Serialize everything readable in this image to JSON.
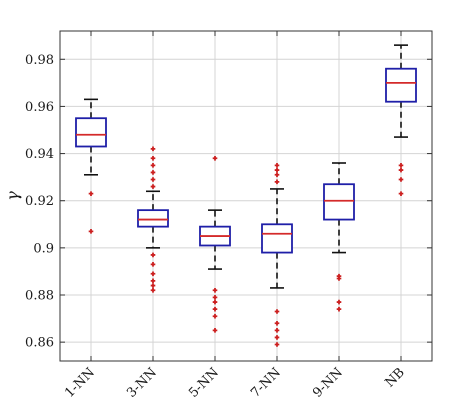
{
  "chart_data": {
    "type": "box",
    "title": "",
    "xlabel": "",
    "ylabel": "γ",
    "ylim": [
      0.852,
      0.992
    ],
    "yticks": [
      0.86,
      0.88,
      0.9,
      0.92,
      0.94,
      0.96,
      0.98
    ],
    "ytick_labels": [
      "0.86",
      "0.88",
      "0.9",
      "0.92",
      "0.94",
      "0.96",
      "0.98"
    ],
    "grid": true,
    "categories": [
      "1-NN",
      "3-NN",
      "5-NN",
      "7-NN",
      "9-NN",
      "NB"
    ],
    "boxes": [
      {
        "category": "1-NN",
        "whisker_low": 0.931,
        "q1": 0.943,
        "median": 0.948,
        "q3": 0.955,
        "whisker_high": 0.963,
        "outliers": [
          0.923,
          0.907
        ]
      },
      {
        "category": "3-NN",
        "whisker_low": 0.9,
        "q1": 0.909,
        "median": 0.912,
        "q3": 0.916,
        "whisker_high": 0.924,
        "outliers": [
          0.942,
          0.938,
          0.935,
          0.932,
          0.929,
          0.926,
          0.897,
          0.893,
          0.889,
          0.886,
          0.884,
          0.882
        ]
      },
      {
        "category": "5-NN",
        "whisker_low": 0.891,
        "q1": 0.901,
        "median": 0.905,
        "q3": 0.909,
        "whisker_high": 0.916,
        "outliers": [
          0.938,
          0.882,
          0.879,
          0.877,
          0.874,
          0.871,
          0.865
        ]
      },
      {
        "category": "7-NN",
        "whisker_low": 0.883,
        "q1": 0.898,
        "median": 0.906,
        "q3": 0.91,
        "whisker_high": 0.925,
        "outliers": [
          0.935,
          0.933,
          0.931,
          0.928,
          0.873,
          0.868,
          0.865,
          0.862,
          0.859
        ]
      },
      {
        "category": "9-NN",
        "whisker_low": 0.898,
        "q1": 0.912,
        "median": 0.92,
        "q3": 0.927,
        "whisker_high": 0.936,
        "outliers": [
          0.888,
          0.887,
          0.877,
          0.874
        ]
      },
      {
        "category": "NB",
        "whisker_low": 0.947,
        "q1": 0.962,
        "median": 0.97,
        "q3": 0.976,
        "whisker_high": 0.986,
        "outliers": [
          0.935,
          0.933,
          0.929,
          0.923
        ]
      }
    ],
    "colors": {
      "box": "#1f1fa8",
      "median": "#d42a2a",
      "whisker": "#111111",
      "outlier": "#cc2020",
      "grid": "#d4d4d4",
      "axes": "#333333"
    }
  }
}
